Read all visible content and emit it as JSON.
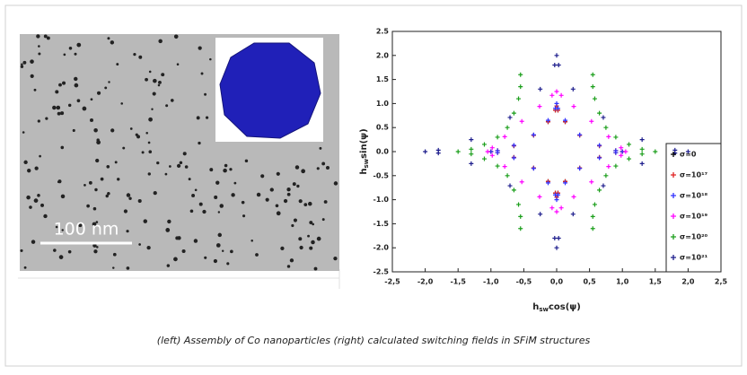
{
  "image": {
    "scale_bar": "100 nm"
  },
  "chart_data": {
    "type": "scatter",
    "xlabel": {
      "base": "h",
      "sub": "sw",
      "rest": "cos(ψ)"
    },
    "ylabel": {
      "base": "h",
      "sub": "sw",
      "rest": "sin(ψ)"
    },
    "xlim": [
      -2.5,
      2.5
    ],
    "ylim": [
      -2.5,
      2.5
    ],
    "xticks": [
      {
        "value": -2.5,
        "label": "-2,5"
      },
      {
        "value": -2,
        "label": "-2,0"
      },
      {
        "value": -1.5,
        "label": "-1,5"
      },
      {
        "value": -1,
        "label": "-1,0"
      },
      {
        "value": -0.5,
        "label": "-0,5"
      },
      {
        "value": 0,
        "label": "0,0"
      },
      {
        "value": 0.5,
        "label": "0,5"
      },
      {
        "value": 1,
        "label": "1,0"
      },
      {
        "value": 1.5,
        "label": "1,5"
      },
      {
        "value": 2,
        "label": "2,0"
      },
      {
        "value": 2.5,
        "label": "2,5"
      }
    ],
    "yticks": [
      -2.5,
      {
        "value": -2,
        "label": "-2.0"
      },
      -1.5,
      {
        "value": -1,
        "label": "-1.0"
      },
      -0.5,
      {
        "value": 0,
        "label": "0.0"
      },
      0.5,
      {
        "value": 1,
        "label": "1.0"
      },
      1.5,
      {
        "value": 2,
        "label": "2.0"
      },
      2.5
    ],
    "grid": false,
    "legend": "lower right",
    "series": [
      {
        "name": "σ=0",
        "color": "#000000",
        "x": [
          1,
          0.9,
          0.65,
          0.35,
          0.13,
          0.02,
          0,
          -0.02,
          -0.13,
          -0.35,
          -0.65,
          -0.9,
          -1,
          -0.9,
          -0.65,
          -0.35,
          -0.13,
          -0.02,
          0,
          0.02,
          0.13,
          0.35,
          0.65,
          0.9
        ],
        "values": [
          0,
          0.02,
          0.12,
          0.34,
          0.62,
          0.86,
          0.95,
          0.86,
          0.62,
          0.34,
          0.12,
          0.02,
          0,
          -0.02,
          -0.12,
          -0.34,
          -0.62,
          -0.86,
          -0.95,
          -0.86,
          -0.62,
          -0.34,
          -0.12,
          -0.02
        ]
      },
      {
        "name": "σ=10¹⁷",
        "color": "#e02020",
        "x": [
          1,
          0.9,
          0.65,
          0.35,
          0.13,
          0.02,
          0,
          -0.02,
          -0.13,
          -0.35,
          -0.65,
          -0.9,
          -1,
          -0.9,
          -0.65,
          -0.35,
          -0.13,
          -0.02,
          0,
          0.02,
          0.13,
          0.35,
          0.65,
          0.9
        ],
        "values": [
          0,
          0.02,
          0.12,
          0.34,
          0.62,
          0.86,
          0.95,
          0.86,
          0.62,
          0.34,
          0.12,
          0.02,
          0,
          -0.02,
          -0.12,
          -0.34,
          -0.62,
          -0.86,
          -0.95,
          -0.86,
          -0.62,
          -0.34,
          -0.12,
          -0.02
        ]
      },
      {
        "name": "σ=10¹⁸",
        "color": "#3030ff",
        "x": [
          1,
          0.9,
          0.65,
          0.35,
          0.13,
          0.02,
          0,
          -0.02,
          -0.13,
          -0.35,
          -0.65,
          -0.9,
          -1,
          -0.9,
          -0.65,
          -0.35,
          -0.13,
          -0.02,
          0,
          0.02,
          0.13,
          0.35,
          0.65,
          0.9
        ],
        "values": [
          0,
          0.02,
          0.13,
          0.35,
          0.65,
          0.9,
          1,
          0.9,
          0.65,
          0.35,
          0.13,
          0.02,
          0,
          -0.02,
          -0.13,
          -0.35,
          -0.65,
          -0.9,
          -1,
          -0.9,
          -0.65,
          -0.35,
          -0.13,
          -0.02
        ]
      },
      {
        "name": "σ=10¹⁹",
        "color": "#ff00ff",
        "x": [
          1.05,
          0.98,
          0.79,
          0.53,
          0.26,
          0.07,
          0,
          -0.07,
          -0.26,
          -0.53,
          -0.79,
          -0.98,
          -1.05,
          -0.98,
          -0.79,
          -0.53,
          -0.26,
          -0.07,
          0,
          0.07,
          0.26,
          0.53,
          0.79,
          0.98
        ],
        "values": [
          0,
          0.08,
          0.31,
          0.63,
          0.94,
          1.17,
          1.25,
          1.17,
          0.94,
          0.63,
          0.31,
          0.08,
          0,
          -0.08,
          -0.31,
          -0.63,
          -0.94,
          -1.17,
          -1.25,
          -1.17,
          -0.94,
          -0.63,
          -0.31,
          -0.08
        ]
      },
      {
        "name": "σ=10²⁰",
        "color": "#1a9e1a",
        "x": [
          1.5,
          1.3,
          1.1,
          0.9,
          0.75,
          0.65,
          0.58,
          0.55,
          0.55,
          -0.55,
          -0.55,
          -0.58,
          -0.65,
          -0.75,
          -0.9,
          -1.1,
          -1.3,
          -1.5,
          -1.3,
          -1.1,
          -0.9,
          -0.75,
          -0.65,
          -0.58,
          -0.55,
          -0.55,
          0.55,
          0.55,
          0.58,
          0.65,
          0.75,
          0.9,
          1.1,
          1.3
        ],
        "values": [
          0,
          0.05,
          0.15,
          0.3,
          0.5,
          0.8,
          1.1,
          1.35,
          1.6,
          1.6,
          1.35,
          1.1,
          0.8,
          0.5,
          0.3,
          0.15,
          0.05,
          0,
          -0.05,
          -0.15,
          -0.3,
          -0.5,
          -0.8,
          -1.1,
          -1.35,
          -1.6,
          -1.6,
          -1.35,
          -1.1,
          -0.8,
          -0.5,
          -0.3,
          -0.15,
          -0.05
        ]
      },
      {
        "name": "σ=10²¹",
        "color": "#1c1c8c",
        "x": [
          2,
          1.8,
          1.3,
          0.71,
          0.25,
          0.03,
          0,
          -0.03,
          -0.25,
          -0.71,
          -1.3,
          -1.8,
          -2,
          -1.8,
          -1.3,
          -0.71,
          -0.25,
          -0.03,
          0,
          0.03,
          0.25,
          0.71,
          1.3,
          1.8
        ],
        "values": [
          0,
          0.03,
          0.25,
          0.71,
          1.3,
          1.8,
          2,
          1.8,
          1.3,
          0.71,
          0.25,
          0.03,
          0,
          -0.03,
          -0.25,
          -0.71,
          -1.3,
          -1.8,
          -2,
          -1.8,
          -1.3,
          -0.71,
          -0.25,
          -0.03
        ]
      }
    ]
  },
  "caption": "(left) Assembly of Co nanoparticles (right) calculated switching fields in SFiM structures"
}
